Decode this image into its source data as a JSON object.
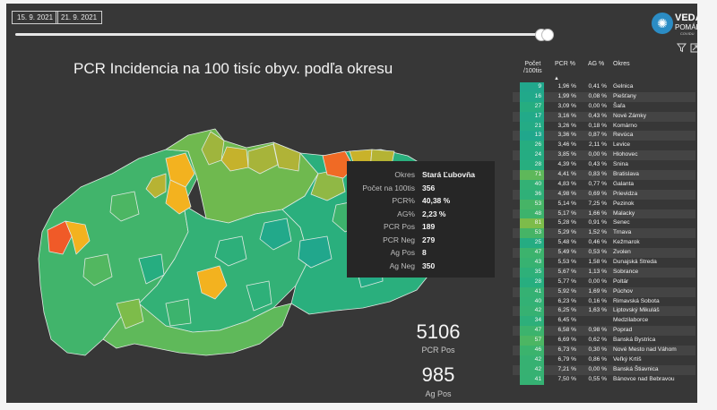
{
  "filters": {
    "date_from": "15. 9. 2021",
    "date_to": "21. 9. 2021",
    "slider_value": 1.0
  },
  "logo": {
    "line1": "VEDA",
    "line2": "POMÁHA",
    "line3": "COVIDU",
    "icon": "virus-icon"
  },
  "toolbar": {
    "filter_icon": "filter-icon",
    "focus_icon": "expand-icon"
  },
  "title": "PCR Incidencia na 100 tisíc obyv. podľa okresu",
  "tooltip": {
    "rows": [
      {
        "label": "Okres",
        "value": "Stará Ľubovňa"
      },
      {
        "label": "Počet na 100tis",
        "value": "356"
      },
      {
        "label": "PCR%",
        "value": "40,38 %"
      },
      {
        "label": "AG%",
        "value": "2,23 %"
      },
      {
        "label": "PCR Pos",
        "value": "189"
      },
      {
        "label": "PCR Neg",
        "value": "279"
      },
      {
        "label": "Ag Pos",
        "value": "8"
      },
      {
        "label": "Ag Neg",
        "value": "350"
      }
    ]
  },
  "kpis": [
    {
      "value": "5106",
      "label": "PCR Pos"
    },
    {
      "value": "985",
      "label": "Ag Pos"
    }
  ],
  "table": {
    "headers": {
      "count_l1": "Počet",
      "count_l2": "/100tis",
      "pcr": "PCR %",
      "ag": "AG %",
      "okres": "Okres"
    },
    "sort_icon": "sort-ascending-icon",
    "rows": [
      {
        "count": "9",
        "pcr": "1,96 %",
        "ag": "0,41 %",
        "okres": "Gelnica",
        "color": "#21a78c"
      },
      {
        "count": "16",
        "pcr": "1,99 %",
        "ag": "0,08 %",
        "okres": "Piešťany",
        "color": "#21a98a"
      },
      {
        "count": "27",
        "pcr": "3,09 %",
        "ag": "0,00 %",
        "okres": "Šaľa",
        "color": "#26ad80"
      },
      {
        "count": "17",
        "pcr": "3,16 %",
        "ag": "0,43 %",
        "okres": "Nové Zámky",
        "color": "#22aa89"
      },
      {
        "count": "21",
        "pcr": "3,26 %",
        "ag": "0,18 %",
        "okres": "Komárno",
        "color": "#24ab85"
      },
      {
        "count": "13",
        "pcr": "3,36 %",
        "ag": "0,87 %",
        "okres": "Revúca",
        "color": "#20a78c"
      },
      {
        "count": "26",
        "pcr": "3,46 %",
        "ag": "2,11 %",
        "okres": "Levice",
        "color": "#26ad80"
      },
      {
        "count": "24",
        "pcr": "3,85 %",
        "ag": "0,00 %",
        "okres": "Hlohovec",
        "color": "#25ac82"
      },
      {
        "count": "28",
        "pcr": "4,39 %",
        "ag": "0,43 %",
        "okres": "Snina",
        "color": "#27ae7f"
      },
      {
        "count": "71",
        "pcr": "4,41 %",
        "ag": "0,83 %",
        "okres": "Bratislava",
        "color": "#5eb85a"
      },
      {
        "count": "40",
        "pcr": "4,83 %",
        "ag": "0,77 %",
        "okres": "Galanta",
        "color": "#33b175"
      },
      {
        "count": "36",
        "pcr": "4,98 %",
        "ag": "0,69 %",
        "okres": "Prievidza",
        "color": "#2fb078"
      },
      {
        "count": "53",
        "pcr": "5,14 %",
        "ag": "7,25 %",
        "okres": "Pezinok",
        "color": "#46b466"
      },
      {
        "count": "48",
        "pcr": "5,17 %",
        "ag": "1,66 %",
        "okres": "Malacky",
        "color": "#3db36c"
      },
      {
        "count": "81",
        "pcr": "5,28 %",
        "ag": "0,91 %",
        "okres": "Senec",
        "color": "#7dbc4a"
      },
      {
        "count": "53",
        "pcr": "5,29 %",
        "ag": "1,52 %",
        "okres": "Trnava",
        "color": "#46b466"
      },
      {
        "count": "25",
        "pcr": "5,48 %",
        "ag": "0,46 %",
        "okres": "Kežmarok",
        "color": "#25ac82"
      },
      {
        "count": "47",
        "pcr": "5,49 %",
        "ag": "0,53 %",
        "okres": "Zvolen",
        "color": "#3cb36d"
      },
      {
        "count": "43",
        "pcr": "5,53 %",
        "ag": "1,58 %",
        "okres": "Dunajská Streda",
        "color": "#37b271"
      },
      {
        "count": "35",
        "pcr": "5,67 %",
        "ag": "1,13 %",
        "okres": "Sobrance",
        "color": "#2eb079"
      },
      {
        "count": "28",
        "pcr": "5,77 %",
        "ag": "0,00 %",
        "okres": "Poltár",
        "color": "#27ae7f"
      },
      {
        "count": "41",
        "pcr": "5,92 %",
        "ag": "1,69 %",
        "okres": "Púchov",
        "color": "#35b173"
      },
      {
        "count": "40",
        "pcr": "6,23 %",
        "ag": "0,16 %",
        "okres": "Rimavská Sobota",
        "color": "#33b175"
      },
      {
        "count": "42",
        "pcr": "6,25 %",
        "ag": "1,63 %",
        "okres": "Liptovský Mikuláš",
        "color": "#36b172"
      },
      {
        "count": "34",
        "pcr": "6,45 %",
        "ag": "",
        "okres": "Medzilaborce",
        "color": "#2daf7a"
      },
      {
        "count": "47",
        "pcr": "6,58 %",
        "ag": "0,98 %",
        "okres": "Poprad",
        "color": "#3cb36d"
      },
      {
        "count": "57",
        "pcr": "6,69 %",
        "ag": "0,62 %",
        "okres": "Banská Bystrica",
        "color": "#4cb663"
      },
      {
        "count": "46",
        "pcr": "6,73 %",
        "ag": "0,30 %",
        "okres": "Nové Mesto nad Váhom",
        "color": "#3bb36d"
      },
      {
        "count": "42",
        "pcr": "6,79 %",
        "ag": "0,86 %",
        "okres": "Veľký Krtíš",
        "color": "#36b172"
      },
      {
        "count": "42",
        "pcr": "7,21 %",
        "ag": "0,00 %",
        "okres": "Banská Štiavnica",
        "color": "#36b172"
      },
      {
        "count": "41",
        "pcr": "7,50 %",
        "ag": "0,55 %",
        "okres": "Bánovce nad Bebravou",
        "color": "#35b173"
      }
    ]
  }
}
